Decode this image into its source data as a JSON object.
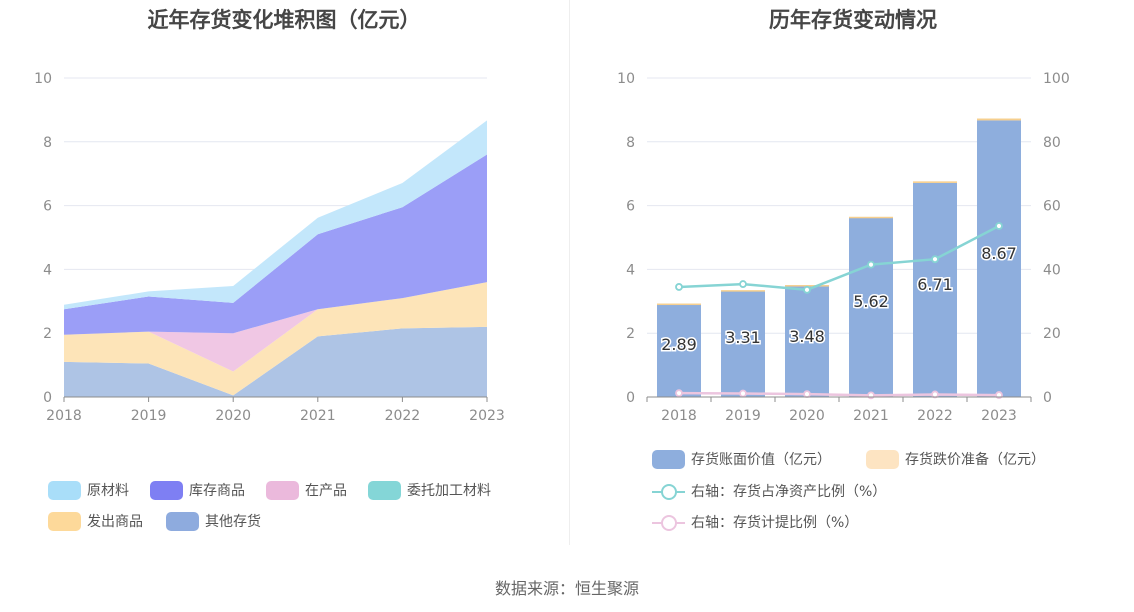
{
  "chart_data": [
    {
      "type": "area",
      "title": "近年存货变化堆积图（亿元）",
      "x": [
        "2018",
        "2019",
        "2020",
        "2021",
        "2022",
        "2023"
      ],
      "ylim": [
        0,
        10
      ],
      "yticks": [
        0,
        2,
        4,
        6,
        8,
        10
      ],
      "stacked": true,
      "legend_position": "bottom",
      "series": [
        {
          "name": "其他存货",
          "color": "#aec4e5",
          "values": [
            1.1,
            1.05,
            0.05,
            1.9,
            2.15,
            2.2
          ]
        },
        {
          "name": "发出商品",
          "color": "#fde4b8",
          "values": [
            0.85,
            1.0,
            0.75,
            0.85,
            0.95,
            1.4
          ]
        },
        {
          "name": "在产品",
          "color": "#f0c7e4",
          "values": [
            0.0,
            0.0,
            1.2,
            0.0,
            0.0,
            0.0
          ]
        },
        {
          "name": "委托加工材料",
          "color": "#84d6d7",
          "values": [
            0.0,
            0.0,
            0.0,
            0.0,
            0.0,
            0.0
          ]
        },
        {
          "name": "库存商品",
          "color": "#9b9ef7",
          "values": [
            0.8,
            1.1,
            0.95,
            2.35,
            2.85,
            4.0
          ]
        },
        {
          "name": "原材料",
          "color": "#c3e7fb",
          "values": [
            0.14,
            0.16,
            0.53,
            0.52,
            0.76,
            1.07
          ]
        }
      ],
      "legend": [
        {
          "name": "原材料",
          "color": "#a9def9"
        },
        {
          "name": "库存商品",
          "color": "#7e7ff3"
        },
        {
          "name": "在产品",
          "color": "#ebb9dc"
        },
        {
          "name": "委托加工材料",
          "color": "#84d6d7"
        },
        {
          "name": "发出商品",
          "color": "#fdd99a"
        },
        {
          "name": "其他存货",
          "color": "#8eabde"
        }
      ]
    },
    {
      "type": "bar",
      "title": "历年存货变动情况",
      "categories": [
        "2018",
        "2019",
        "2020",
        "2021",
        "2022",
        "2023"
      ],
      "ylim": [
        0,
        10
      ],
      "yticks": [
        0,
        2,
        4,
        6,
        8,
        10
      ],
      "y2lim": [
        0,
        100
      ],
      "y2ticks": [
        0,
        20,
        40,
        60,
        80,
        100
      ],
      "legend_position": "bottom",
      "series": [
        {
          "name": "存货账面价值（亿元）",
          "color": "#8eaedd",
          "values": [
            2.89,
            3.31,
            3.48,
            5.62,
            6.71,
            8.67
          ],
          "labels": [
            "2.89",
            "3.31",
            "3.48",
            "5.62",
            "6.71",
            "8.67"
          ]
        },
        {
          "name": "存货跌价准备（亿元）",
          "color": "#fde4c2",
          "values": [
            0.04,
            0.04,
            0.03,
            0.03,
            0.05,
            0.06
          ]
        },
        {
          "name": "右轴：存货占净资产比例（%）",
          "color": "#86d4d4",
          "axis": "right",
          "type": "line",
          "values": [
            34.5,
            35.4,
            33.6,
            41.5,
            43.2,
            53.6
          ]
        },
        {
          "name": "右轴：存货计提比例（%）",
          "color": "#ecc5df",
          "axis": "right",
          "type": "line",
          "values": [
            1.2,
            1.1,
            0.9,
            0.5,
            0.8,
            0.6
          ]
        }
      ]
    }
  ],
  "footer": {
    "source": "数据来源：恒生聚源"
  }
}
